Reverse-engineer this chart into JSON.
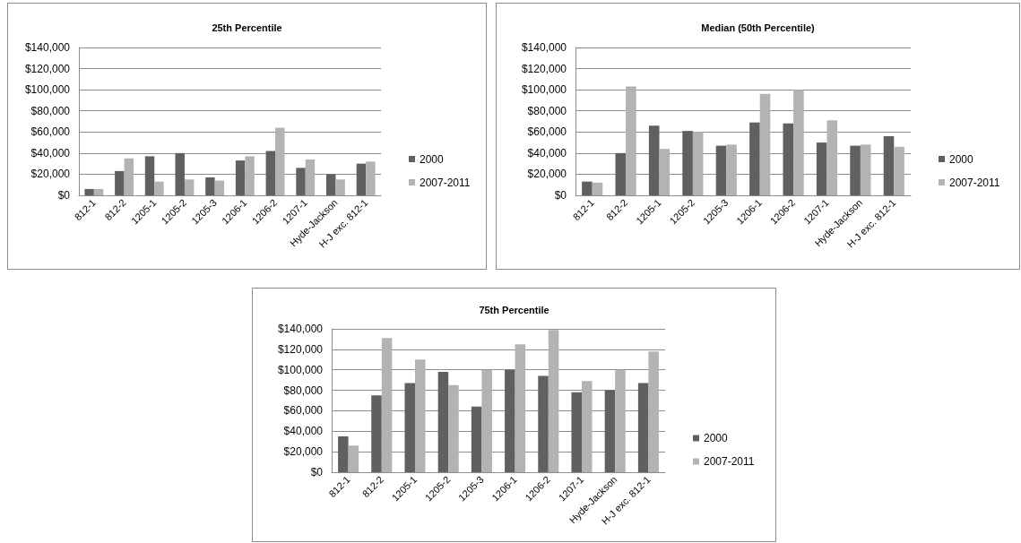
{
  "chart_data": [
    {
      "type": "bar",
      "title": "25th Percentile",
      "categories": [
        "812-1",
        "812-2",
        "1205-1",
        "1205-2",
        "1205-3",
        "1206-1",
        "1206-2",
        "1207-1",
        "Hyde-Jackson",
        "H-J exc. 812-1"
      ],
      "series": [
        {
          "name": "2000",
          "color": "#606060",
          "values": [
            6000,
            23000,
            37000,
            40000,
            17000,
            33000,
            42000,
            26000,
            20000,
            30000
          ]
        },
        {
          "name": "2007-2011",
          "color": "#b3b3b3",
          "values": [
            6000,
            35000,
            13000,
            15000,
            14000,
            37000,
            64000,
            34000,
            15000,
            32000
          ]
        }
      ],
      "ylim": [
        0,
        140000
      ],
      "yticks": [
        {
          "value": 0,
          "label": "$0"
        },
        {
          "value": 20000,
          "label": "$20,000"
        },
        {
          "value": 40000,
          "label": "$40,000"
        },
        {
          "value": 60000,
          "label": "$60,000"
        },
        {
          "value": 80000,
          "label": "$80,000"
        },
        {
          "value": 100000,
          "label": "$100,000"
        },
        {
          "value": 120000,
          "label": "$120,000"
        },
        {
          "value": 140000,
          "label": "$140,000"
        }
      ],
      "grid": "y",
      "legend": "right"
    },
    {
      "type": "bar",
      "title": "Median (50th Percentile)",
      "categories": [
        "812-1",
        "812-2",
        "1205-1",
        "1205-2",
        "1205-3",
        "1206-1",
        "1206-2",
        "1207-1",
        "Hyde-Jackson",
        "H-J exc. 812-1"
      ],
      "series": [
        {
          "name": "2000",
          "color": "#606060",
          "values": [
            13000,
            40000,
            66000,
            61000,
            47000,
            69000,
            68000,
            50000,
            47000,
            56000
          ]
        },
        {
          "name": "2007-2011",
          "color": "#b3b3b3",
          "values": [
            12000,
            103000,
            44000,
            60000,
            48000,
            96000,
            100000,
            71000,
            48000,
            46000
          ]
        }
      ],
      "ylim": [
        0,
        140000
      ],
      "yticks": [
        {
          "value": 0,
          "label": "$0"
        },
        {
          "value": 20000,
          "label": "$20,000"
        },
        {
          "value": 40000,
          "label": "$40,000"
        },
        {
          "value": 60000,
          "label": "$60,000"
        },
        {
          "value": 80000,
          "label": "$80,000"
        },
        {
          "value": 100000,
          "label": "$100,000"
        },
        {
          "value": 120000,
          "label": "$120,000"
        },
        {
          "value": 140000,
          "label": "$140,000"
        }
      ],
      "grid": "y",
      "legend": "right"
    },
    {
      "type": "bar",
      "title": "75th Percentile",
      "categories": [
        "812-1",
        "812-2",
        "1205-1",
        "1205-2",
        "1205-3",
        "1206-1",
        "1206-2",
        "1207-1",
        "Hyde-Jackson",
        "H-J exc. 812-1"
      ],
      "series": [
        {
          "name": "2000",
          "color": "#606060",
          "values": [
            35000,
            75000,
            87000,
            98000,
            64000,
            100000,
            94000,
            78000,
            80000,
            87000
          ]
        },
        {
          "name": "2007-2011",
          "color": "#b3b3b3",
          "values": [
            26000,
            131000,
            110000,
            85000,
            100000,
            125000,
            139000,
            89000,
            100000,
            118000
          ]
        }
      ],
      "ylim": [
        0,
        140000
      ],
      "yticks": [
        {
          "value": 0,
          "label": "$0"
        },
        {
          "value": 20000,
          "label": "$20,000"
        },
        {
          "value": 40000,
          "label": "$40,000"
        },
        {
          "value": 60000,
          "label": "$60,000"
        },
        {
          "value": 80000,
          "label": "$80,000"
        },
        {
          "value": 100000,
          "label": "$100,000"
        },
        {
          "value": 120000,
          "label": "$120,000"
        },
        {
          "value": 140000,
          "label": "$140,000"
        }
      ],
      "grid": "y",
      "legend": "right"
    }
  ]
}
